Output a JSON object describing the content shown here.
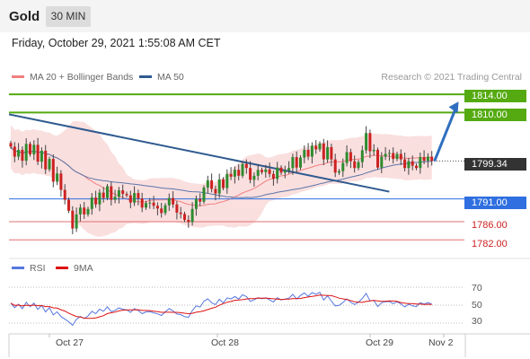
{
  "header": {
    "symbol": "Gold",
    "timeframe": "30 MIN",
    "datetime": "Friday, October 29, 2021 1:55:08 AM CET"
  },
  "legend": {
    "main": [
      {
        "name": "MA 20 + Bollinger Bands",
        "color": "#f08080"
      },
      {
        "name": "MA 50",
        "color": "#2f5a8f"
      }
    ],
    "indicator": [
      {
        "name": "RSI",
        "color": "#5577dd"
      },
      {
        "name": "9MA",
        "color": "#dd1111"
      }
    ]
  },
  "credit": "Research © 2021 Trading Central",
  "price_levels": [
    {
      "label": "1814.00",
      "value": 1814.0,
      "style": "green"
    },
    {
      "label": "1810.00",
      "value": 1810.0,
      "style": "green"
    },
    {
      "label": "1799.34",
      "value": 1799.34,
      "style": "current"
    },
    {
      "label": "1791.00",
      "value": 1791.0,
      "style": "blue"
    },
    {
      "label": "1786.00",
      "value": 1786.0,
      "style": "red"
    },
    {
      "label": "1782.00",
      "value": 1782.0,
      "style": "red"
    }
  ],
  "rsi_ticks": [
    "70",
    "50",
    "30"
  ],
  "x_labels": [
    "Oct 27",
    "Oct 28",
    "Oct 29",
    "Nov 2"
  ],
  "chart_data": {
    "type": "candlestick",
    "instrument": "Gold",
    "interval": "30 MIN",
    "y_range": [
      1778.5,
      1816.0
    ],
    "rsi_range": [
      20,
      80
    ],
    "n_bars": 110,
    "closes": [
      1802.5,
      1800.3,
      1801.8,
      1799.4,
      1803.1,
      1800.8,
      1802.9,
      1799.2,
      1801.6,
      1797.5,
      1799.8,
      1794.8,
      1796.6,
      1793.0,
      1790.8,
      1788.4,
      1784.5,
      1787.6,
      1789.1,
      1787.6,
      1788.8,
      1791.3,
      1789.8,
      1792.4,
      1791.2,
      1793.8,
      1790.8,
      1791.5,
      1792.9,
      1792.1,
      1791.8,
      1790.2,
      1792.3,
      1791.1,
      1789.1,
      1790.1,
      1790.2,
      1789.5,
      1788.9,
      1787.9,
      1789.6,
      1791.2,
      1789.8,
      1788.0,
      1787.7,
      1786.4,
      1785.9,
      1788.8,
      1791.0,
      1790.4,
      1793.5,
      1795.1,
      1793.2,
      1792.2,
      1795.3,
      1793.4,
      1796.5,
      1795.9,
      1797.4,
      1796.1,
      1798.7,
      1797.8,
      1795.2,
      1796.1,
      1797.4,
      1796.9,
      1797.5,
      1796.5,
      1795.4,
      1797.9,
      1796.8,
      1797.3,
      1797.8,
      1800.2,
      1797.9,
      1800.1,
      1801.8,
      1800.3,
      1802.7,
      1801.9,
      1803.2,
      1799.7,
      1802.4,
      1799.7,
      1796.8,
      1797.1,
      1798.9,
      1801.3,
      1799.3,
      1797.8,
      1799.1,
      1801.7,
      1805.5,
      1801.5,
      1801.8,
      1797.9,
      1800.3,
      1800.9,
      1801.1,
      1799.8,
      1800.9,
      1799.7,
      1797.8,
      1799.3,
      1798.3,
      1797.8,
      1800.2,
      1799.4,
      1800.3,
      1799.34
    ],
    "rsi": [
      52.2,
      47.2,
      51.0,
      46.0,
      53.2,
      48.3,
      52.2,
      45.2,
      49.8,
      42.5,
      47.1,
      39.1,
      42.6,
      37.3,
      34.4,
      31.5,
      27.5,
      34.3,
      37.4,
      35.1,
      38.0,
      43.1,
      40.5,
      45.5,
      43.2,
      48.1,
      42.8,
      44.2,
      46.9,
      45.4,
      44.8,
      42.0,
      46.2,
      44.0,
      40.5,
      42.5,
      42.7,
      41.4,
      40.3,
      38.5,
      42.5,
      46.2,
      43.6,
      40.1,
      39.5,
      37.2,
      36.4,
      44.0,
      49.2,
      47.9,
      54.3,
      57.1,
      52.7,
      50.6,
      56.6,
      52.5,
      58.1,
      56.9,
      59.6,
      56.8,
      61.5,
      59.6,
      54.2,
      55.9,
      58.3,
      57.1,
      58.2,
      55.9,
      53.5,
      58.2,
      55.8,
      56.8,
      57.8,
      62.0,
      56.8,
      60.8,
      63.6,
      59.9,
      64.0,
      62.0,
      64.3,
      55.8,
      60.4,
      54.5,
      49.2,
      49.7,
      53.0,
      57.0,
      53.3,
      50.7,
      53.1,
      57.5,
      63.1,
      54.8,
      55.3,
      48.4,
      52.7,
      53.8,
      54.1,
      51.7,
      53.7,
      51.4,
      48.0,
      51.1,
      49.2,
      48.4,
      52.8,
      51.2,
      52.8,
      51.0
    ],
    "trendline": {
      "from": [
        0,
        1809.6
      ],
      "to": [
        98,
        1792.6
      ]
    },
    "forecast_arrow": {
      "from": [
        109,
        1799.34
      ],
      "to": [
        115,
        1812.4
      ]
    }
  }
}
